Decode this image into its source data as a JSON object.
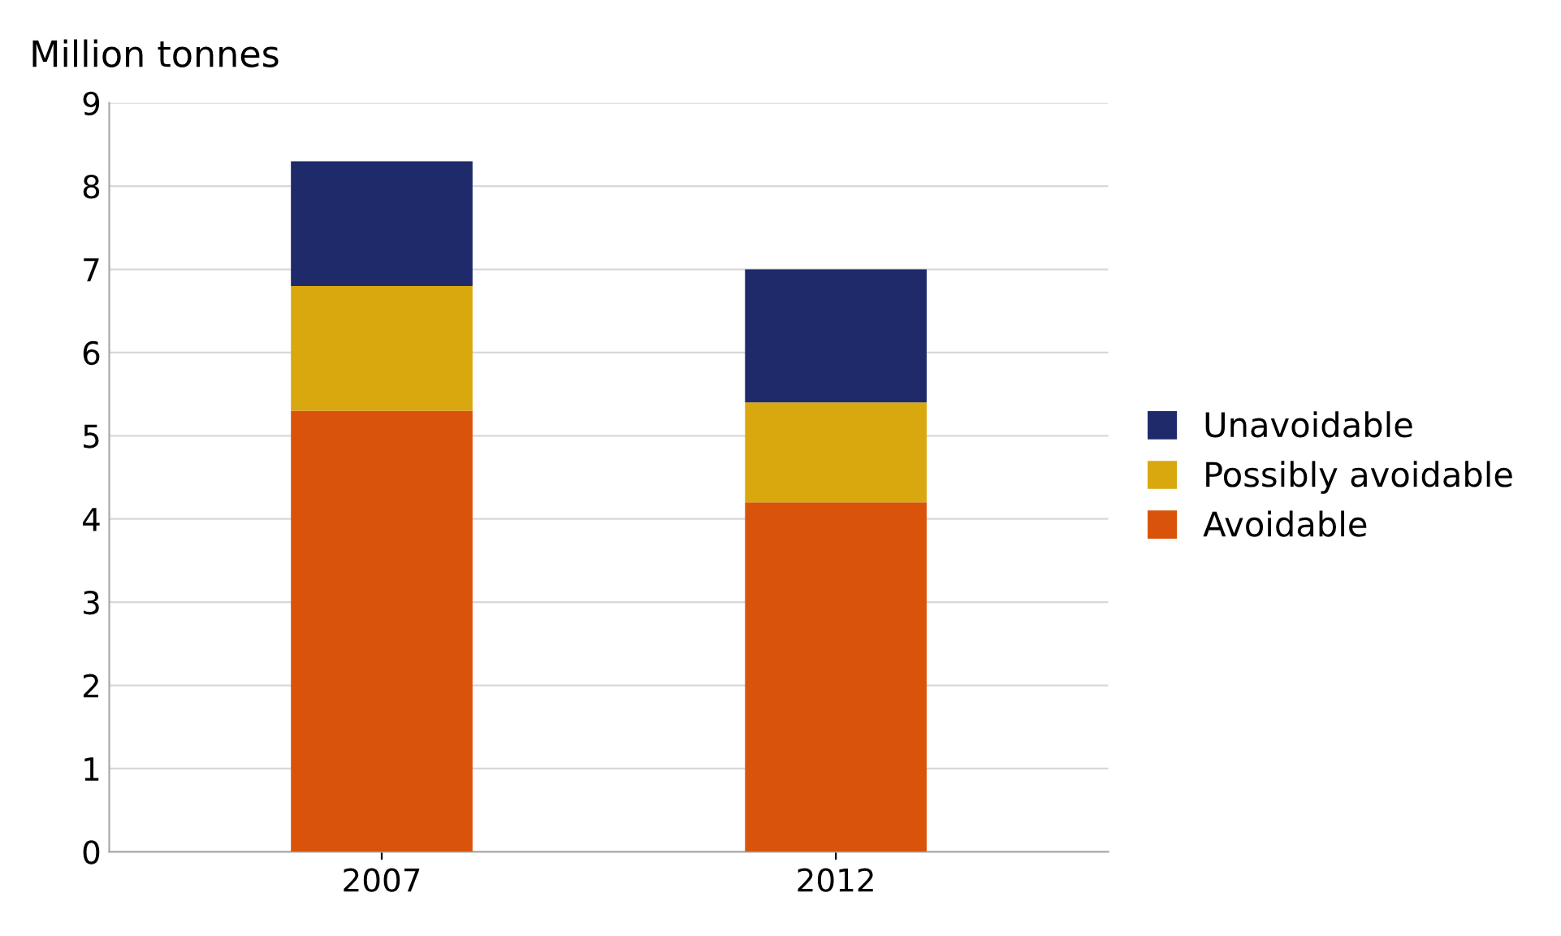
{
  "chart_data": {
    "type": "bar",
    "stacked": true,
    "ylabel": "Million tonnes",
    "categories": [
      "2007",
      "2012"
    ],
    "series": [
      {
        "name": "Avoidable",
        "color": "#d9540a",
        "values": [
          5.3,
          4.2
        ]
      },
      {
        "name": "Possibly avoidable",
        "color": "#d9a80f",
        "values": [
          1.5,
          1.2
        ]
      },
      {
        "name": "Unavoidable",
        "color": "#1f2a6b",
        "values": [
          1.5,
          1.6
        ]
      }
    ],
    "ylim": [
      0,
      9
    ],
    "yticks": [
      0,
      1,
      2,
      3,
      4,
      5,
      6,
      7,
      8,
      9
    ],
    "grid": "y",
    "legend": "right"
  }
}
